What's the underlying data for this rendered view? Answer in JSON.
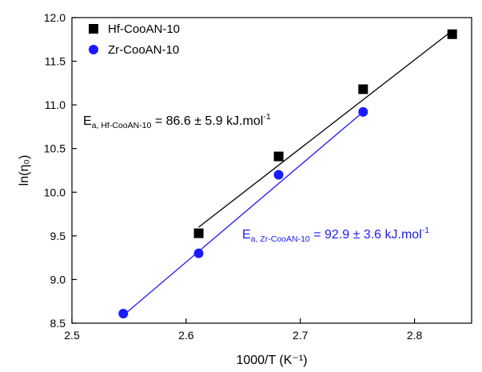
{
  "chart_data": {
    "type": "scatter",
    "xlabel": "1000/T (K⁻¹)",
    "ylabel": "ln(η₀)",
    "xlim": [
      2.5,
      2.85
    ],
    "ylim": [
      8.5,
      12.0
    ],
    "x_ticks": [
      "2.5",
      "2.6",
      "2.7",
      "2.8"
    ],
    "y_ticks": [
      "8.5",
      "9.0",
      "9.5",
      "10.0",
      "10.5",
      "11.0",
      "11.5",
      "12.0"
    ],
    "legend_position": "top-left",
    "series": [
      {
        "name": "Hf-CooAN-10",
        "marker": "square",
        "color": "#000000",
        "x": [
          2.611,
          2.681,
          2.755,
          2.833
        ],
        "y": [
          9.53,
          10.41,
          11.18,
          11.81
        ],
        "fit": {
          "x": [
            2.611,
            2.833
          ],
          "y": [
            9.6,
            11.85
          ]
        },
        "annotation": {
          "E": "E",
          "sub": "a, Hf-CooAN-10",
          "value": " = 86.6 ± 5.9 kJ.mol",
          "sup": "-1",
          "color": "#000000"
        }
      },
      {
        "name": "Zr-CooAN-10",
        "marker": "circle",
        "color": "#1a1aff",
        "x": [
          2.545,
          2.611,
          2.681,
          2.755
        ],
        "y": [
          8.61,
          9.3,
          10.2,
          10.92
        ],
        "fit": {
          "x": [
            2.545,
            2.755
          ],
          "y": [
            8.59,
            10.92
          ]
        },
        "annotation": {
          "E": "E",
          "sub": "a, Zr-CooAN-10",
          "value": " = 92.9 ± 3.6 kJ.mol",
          "sup": "-1",
          "color": "#1a1aff"
        }
      }
    ]
  }
}
